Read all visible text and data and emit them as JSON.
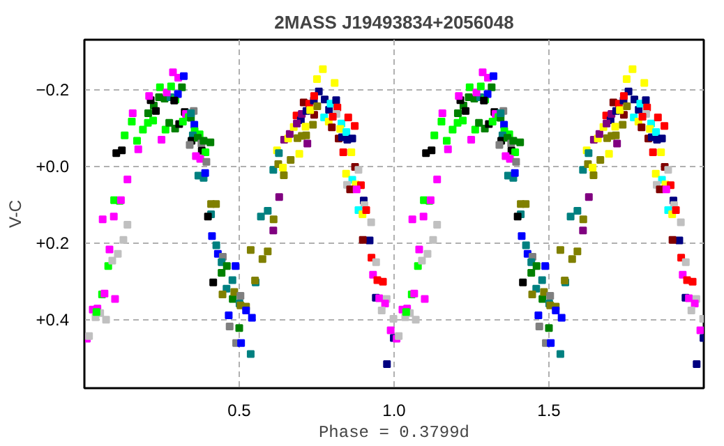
{
  "chart_data": {
    "type": "scatter",
    "title": "2MASS J19493834+2056048",
    "xlabel": "Phase = 0.3799d",
    "ylabel": "V-C",
    "marker": "square",
    "grid": true,
    "xlim": [
      0,
      2
    ],
    "xticks": [
      0.5,
      {
        "value": 1,
        "label": "1.0"
      },
      1.5
    ],
    "ylim": [
      0.58,
      -0.33
    ],
    "yticks": [
      -0.2,
      {
        "value": 0,
        "label": "+0.0"
      },
      {
        "value": 0.2,
        "label": "+0.2"
      },
      {
        "value": 0.4,
        "label": "+0.4"
      }
    ],
    "series": [
      {
        "x": [
          0.008,
          0.015,
          0.027,
          0.042,
          0.051,
          0.036,
          0.07,
          0.039,
          0.057,
          0.065,
          0.099,
          0.077,
          0.081,
          0.09,
          0.108,
          0.126,
          0.139,
          0.059,
          0.095,
          0.096,
          0.114,
          0.118,
          0.139,
          0.103,
          0.121,
          0.174,
          0.17,
          0.13,
          0.189,
          0.153,
          0.156,
          0.205,
          0.222,
          0.262,
          0.249,
          0.206,
          0.224,
          0.231,
          0.214,
          0.209,
          0.241,
          0.259,
          0.244,
          0.278,
          0.294,
          0.266,
          0.28,
          0.315,
          0.302,
          0.29,
          0.286,
          0.303,
          0.321,
          0.274,
          0.293,
          0.306,
          0.318,
          0.324,
          0.328,
          0.337,
          0.344,
          0.353,
          0.344,
          0.355,
          0.356,
          0.372,
          0.35,
          0.346,
          0.34,
          0.366,
          0.378,
          0.385,
          0.407,
          0.379,
          0.391,
          0.36,
          0.374,
          0.394,
          0.368,
          0.385,
          0.39,
          0.409,
          0.425,
          0.409,
          0.399,
          0.412,
          0.426,
          0.431,
          0.447,
          0.443,
          0.46,
          0.488,
          0.443,
          0.416,
          0.478,
          0.459,
          0.446,
          0.479,
          0.484,
          0.504,
          0.501,
          0.504,
          0.522,
          0.522,
          0.466,
          0.5,
          0.469,
          0.49,
          0.506,
          0.537,
          0.541,
          0.537,
          0.592,
          0.575,
          0.553,
          0.551,
          0.57,
          0.592,
          0.611,
          0.61,
          0.629,
          0.61,
          0.626,
          0.644,
          0.641,
          0.666,
          0.622,
          0.628,
          0.694,
          0.645,
          0.658,
          0.663,
          0.676,
          0.688,
          0.702,
          0.716,
          0.72,
          0.738,
          0.685,
          0.699,
          0.686,
          0.702,
          0.714,
          0.708,
          0.726,
          0.717,
          0.742,
          0.729,
          0.741,
          0.752,
          0.757,
          0.742,
          0.751,
          0.77,
          0.808,
          0.776,
          0.79,
          0.795,
          0.813,
          0.817,
          0.814,
          0.774,
          0.789,
          0.799,
          0.802,
          0.83,
          0.826,
          0.852,
          0.821,
          0.832,
          0.846,
          0.849,
          0.865,
          0.873,
          0.836,
          0.862,
          0.874,
          0.885,
          0.845,
          0.865,
          0.876,
          0.848,
          0.858,
          0.893,
          0.879,
          0.902,
          0.904,
          0.885,
          0.898,
          0.91,
          0.921,
          0.899,
          0.926,
          0.927,
          0.942,
          0.932,
          0.946,
          0.964,
          0.941,
          0.952,
          0.976,
          0.971,
          0.96,
          0.998,
          0.989,
          0.999,
          0.977
        ],
        "values": [
          0.451,
          0.444,
          0.375,
          0.372,
          0.384,
          0.395,
          0.401,
          0.381,
          0.335,
          0.333,
          0.347,
          0.261,
          0.218,
          0.247,
          0.229,
          0.193,
          0.153,
          0.139,
          0.132,
          0.089,
          0.091,
          0.089,
          0.035,
          -0.034,
          -0.041,
          -0.044,
          -0.066,
          -0.08,
          -0.095,
          -0.116,
          -0.138,
          -0.113,
          -0.119,
          -0.095,
          -0.069,
          -0.138,
          -0.158,
          -0.144,
          -0.172,
          -0.183,
          -0.18,
          -0.176,
          -0.206,
          -0.18,
          -0.174,
          -0.192,
          -0.208,
          -0.206,
          -0.188,
          -0.171,
          -0.245,
          -0.231,
          -0.235,
          -0.113,
          -0.098,
          -0.11,
          -0.116,
          -0.141,
          -0.136,
          -0.128,
          -0.126,
          -0.144,
          -0.138,
          -0.108,
          -0.091,
          -0.083,
          -0.08,
          -0.066,
          -0.055,
          -0.074,
          -0.059,
          -0.066,
          -0.062,
          -0.04,
          -0.036,
          -0.026,
          -0.019,
          -0.011,
          0.025,
          0.031,
          0.018,
          0.099,
          0.099,
          0.126,
          0.132,
          0.183,
          0.207,
          0.229,
          0.237,
          0.251,
          0.261,
          0.261,
          0.279,
          0.304,
          0.298,
          0.32,
          0.335,
          0.347,
          0.329,
          0.339,
          0.359,
          0.364,
          0.367,
          0.377,
          0.39,
          0.423,
          0.419,
          0.462,
          0.462,
          0.491,
          0.396,
          0.219,
          0.223,
          0.243,
          0.304,
          0.299,
          0.132,
          0.117,
          0.139,
          0.168,
          0.081,
          0.01,
          -0.005,
          0.024,
          0.004,
          -0.016,
          -0.041,
          -0.034,
          -0.032,
          -0.069,
          -0.072,
          -0.084,
          -0.102,
          -0.073,
          -0.079,
          -0.08,
          -0.059,
          -0.108,
          -0.132,
          -0.12,
          -0.111,
          -0.136,
          -0.103,
          -0.166,
          -0.163,
          -0.144,
          -0.134,
          -0.146,
          -0.171,
          -0.156,
          -0.195,
          -0.183,
          -0.227,
          -0.253,
          -0.217,
          -0.174,
          -0.147,
          -0.163,
          -0.172,
          -0.153,
          -0.136,
          -0.127,
          -0.116,
          -0.101,
          -0.129,
          -0.111,
          -0.097,
          -0.127,
          -0.072,
          -0.075,
          -0.089,
          -0.069,
          -0.072,
          -0.105,
          -0.036,
          -0.036,
          0.002,
          0.01,
          0.02,
          0.036,
          0.048,
          0.049,
          0.061,
          0.05,
          0.061,
          0.09,
          0.102,
          0.115,
          0.126,
          0.115,
          0.194,
          0.193,
          0.147,
          0.239,
          0.251,
          0.284,
          0.298,
          0.302,
          0.344,
          0.345,
          0.347,
          0.359,
          0.377,
          0.399,
          0.429,
          0.449,
          0.517
        ],
        "colors": [
          "#ff00ff",
          "#c0c0c0",
          "#ff00ff",
          "#ff00ff",
          "#c0c0c0",
          "#c0c0c0",
          "#c0c0c0",
          "#00ff00",
          "#00ff00",
          "#ff00ff",
          "#ff00ff",
          "#00ff00",
          "#ff00ff",
          "#c0c0c0",
          "#c0c0c0",
          "#c0c0c0",
          "#c0c0c0",
          "#ff00ff",
          "#ff00ff",
          "#00ff00",
          "#00ff00",
          "#ff00ff",
          "#ff00ff",
          "#000000",
          "#000000",
          "#ff00ff",
          "#00ff00",
          "#00ff00",
          "#00ff00",
          "#00ff00",
          "#ff00ff",
          "#00ff00",
          "#00ff00",
          "#00ff00",
          "#ff00ff",
          "#008000",
          "#008000",
          "#000000",
          "#000000",
          "#ff00ff",
          "#008000",
          "#008000",
          "#00ff00",
          "#008080",
          "#00ff00",
          "#ff00ff",
          "#00ff00",
          "#008000",
          "#0000ff",
          "#000000",
          "#ff00ff",
          "#ff00ff",
          "#0000ff",
          "#008000",
          "#008000",
          "#000000",
          "#00ff00",
          "#000000",
          "#ff00ff",
          "#00ff00",
          "#008000",
          "#808080",
          "#008080",
          "#0000ff",
          "#00ff00",
          "#00ff00",
          "#008080",
          "#000000",
          "#808080",
          "#008000",
          "#808080",
          "#008000",
          "#008000",
          "#000000",
          "#00ff00",
          "#ff00ff",
          "#ff00ff",
          "#808080",
          "#008080",
          "#008080",
          "#0000ff",
          "#808000",
          "#808000",
          "#008080",
          "#000000",
          "#0000ff",
          "#008080",
          "#0000ff",
          "#808080",
          "#008080",
          "#008000",
          "#0000ff",
          "#008000",
          "#000000",
          "#008080",
          "#008080",
          "#808000",
          "#008000",
          "#808000",
          "#808080",
          "#008080",
          "#808000",
          "#808000",
          "#0000ff",
          "#0000ff",
          "#008000",
          "#808080",
          "#808080",
          "#0000ff",
          "#008080",
          "#0000ff",
          "#808000",
          "#808000",
          "#808000",
          "#008080",
          "#808000",
          "#008080",
          "#008080",
          "#808000",
          "#800080",
          "#800080",
          "#008080",
          "#808000",
          "#808000",
          "#ffff00",
          "#808000",
          "#ffff00",
          "#008080",
          "#ffff00",
          "#800080",
          "#ffff00",
          "#800080",
          "#ffff00",
          "#808000",
          "#808000",
          "#808000",
          "#800080",
          "#808000",
          "#ff0000",
          "#000080",
          "#800080",
          "#800080",
          "#ffff00",
          "#800000",
          "#ff0000",
          "#000080",
          "#800000",
          "#ffff00",
          "#000080",
          "#808000",
          "#000080",
          "#ff0000",
          "#ffff00",
          "#ffff00",
          "#ffff00",
          "#000080",
          "#000080",
          "#00ffff",
          "#000080",
          "#ff0000",
          "#c0c0c0",
          "#00ffff",
          "#ffff00",
          "#800000",
          "#ff0000",
          "#00ffff",
          "#ffff00",
          "#ff0000",
          "#800000",
          "#000080",
          "#00ffff",
          "#000080",
          "#000080",
          "#ff0000",
          "#ff0000",
          "#ffff00",
          "#800000",
          "#c0c0c0",
          "#ffff00",
          "#00ffff",
          "#ffff00",
          "#c0c0c0",
          "#800000",
          "#ff0000",
          "#ff00ff",
          "#000080",
          "#c0c0c0",
          "#00ffff",
          "#ffff00",
          "#ff0000",
          "#000080",
          "#800000",
          "#c0c0c0",
          "#ff0000",
          "#c0c0c0",
          "#ff00ff",
          "#ff0000",
          "#ff0000",
          "#000080",
          "#ff00ff",
          "#c0c0c0",
          "#ff00ff",
          "#c0c0c0",
          "#c0c0c0",
          "#ff00ff",
          "#000080",
          "#000080"
        ]
      },
      {
        "x": [
          1.008,
          1.015,
          1.027,
          1.042,
          1.051,
          1.036,
          1.07,
          1.039,
          1.057,
          1.065,
          1.099,
          1.077,
          1.081,
          1.09,
          1.108,
          1.126,
          1.139,
          1.059,
          1.095,
          1.096,
          1.114,
          1.118,
          1.139,
          1.103,
          1.121,
          1.174,
          1.17,
          1.13,
          1.189,
          1.153,
          1.156,
          1.205,
          1.222,
          1.262,
          1.249,
          1.206,
          1.224,
          1.231,
          1.214,
          1.209,
          1.241,
          1.259,
          1.244,
          1.278,
          1.294,
          1.266,
          1.28,
          1.315,
          1.302,
          1.29,
          1.286,
          1.303,
          1.321,
          1.274,
          1.293,
          1.306,
          1.318,
          1.324,
          1.328,
          1.337,
          1.344,
          1.353,
          1.344,
          1.355,
          1.356,
          1.372,
          1.35,
          1.346,
          1.34,
          1.366,
          1.378,
          1.385,
          1.407,
          1.379,
          1.391,
          1.36,
          1.374,
          1.394,
          1.368,
          1.385,
          1.39,
          1.409,
          1.425,
          1.409,
          1.399,
          1.412,
          1.426,
          1.431,
          1.447,
          1.443,
          1.46,
          1.488,
          1.443,
          1.416,
          1.478,
          1.459,
          1.446,
          1.479,
          1.484,
          1.504,
          1.501,
          1.504,
          1.522,
          1.522,
          1.466,
          1.5,
          1.469,
          1.49,
          1.506,
          1.537,
          1.541,
          1.537,
          1.592,
          1.575,
          1.553,
          1.551,
          1.57,
          1.592,
          1.611,
          1.61,
          1.629,
          1.61,
          1.626,
          1.644,
          1.641,
          1.666,
          1.622,
          1.628,
          1.694,
          1.645,
          1.658,
          1.663,
          1.676,
          1.688,
          1.702,
          1.716,
          1.72,
          1.738,
          1.685,
          1.699,
          1.686,
          1.702,
          1.714,
          1.708,
          1.726,
          1.717,
          1.742,
          1.729,
          1.741,
          1.752,
          1.757,
          1.742,
          1.751,
          1.77,
          1.808,
          1.776,
          1.79,
          1.795,
          1.813,
          1.817,
          1.814,
          1.774,
          1.789,
          1.799,
          1.802,
          1.83,
          1.826,
          1.852,
          1.821,
          1.832,
          1.846,
          1.849,
          1.865,
          1.873,
          1.836,
          1.862,
          1.874,
          1.885,
          1.845,
          1.865,
          1.876,
          1.848,
          1.858,
          1.893,
          1.879,
          1.902,
          1.904,
          1.885,
          1.898,
          1.91,
          1.921,
          1.899,
          1.926,
          1.927,
          1.942,
          1.932,
          1.946,
          1.964,
          1.941,
          1.952,
          1.976,
          1.971,
          1.96,
          1.998,
          1.989,
          1.999,
          1.977
        ],
        "values": [
          0.451,
          0.444,
          0.375,
          0.372,
          0.384,
          0.395,
          0.401,
          0.381,
          0.335,
          0.333,
          0.347,
          0.261,
          0.218,
          0.247,
          0.229,
          0.193,
          0.153,
          0.139,
          0.132,
          0.089,
          0.091,
          0.089,
          0.035,
          -0.034,
          -0.041,
          -0.044,
          -0.066,
          -0.08,
          -0.095,
          -0.116,
          -0.138,
          -0.113,
          -0.119,
          -0.095,
          -0.069,
          -0.138,
          -0.158,
          -0.144,
          -0.172,
          -0.183,
          -0.18,
          -0.176,
          -0.206,
          -0.18,
          -0.174,
          -0.192,
          -0.208,
          -0.206,
          -0.188,
          -0.171,
          -0.245,
          -0.231,
          -0.235,
          -0.113,
          -0.098,
          -0.11,
          -0.116,
          -0.141,
          -0.136,
          -0.128,
          -0.126,
          -0.144,
          -0.138,
          -0.108,
          -0.091,
          -0.083,
          -0.08,
          -0.066,
          -0.055,
          -0.074,
          -0.059,
          -0.066,
          -0.062,
          -0.04,
          -0.036,
          -0.026,
          -0.019,
          -0.011,
          0.025,
          0.031,
          0.018,
          0.099,
          0.099,
          0.126,
          0.132,
          0.183,
          0.207,
          0.229,
          0.237,
          0.251,
          0.261,
          0.261,
          0.279,
          0.304,
          0.298,
          0.32,
          0.335,
          0.347,
          0.329,
          0.339,
          0.359,
          0.364,
          0.367,
          0.377,
          0.39,
          0.423,
          0.419,
          0.462,
          0.462,
          0.491,
          0.396,
          0.219,
          0.223,
          0.243,
          0.304,
          0.299,
          0.132,
          0.117,
          0.139,
          0.168,
          0.081,
          0.01,
          -0.005,
          0.024,
          0.004,
          -0.016,
          -0.041,
          -0.034,
          -0.032,
          -0.069,
          -0.072,
          -0.084,
          -0.102,
          -0.073,
          -0.079,
          -0.08,
          -0.059,
          -0.108,
          -0.132,
          -0.12,
          -0.111,
          -0.136,
          -0.103,
          -0.166,
          -0.163,
          -0.144,
          -0.134,
          -0.146,
          -0.171,
          -0.156,
          -0.195,
          -0.183,
          -0.227,
          -0.253,
          -0.217,
          -0.174,
          -0.147,
          -0.163,
          -0.172,
          -0.153,
          -0.136,
          -0.127,
          -0.116,
          -0.101,
          -0.129,
          -0.111,
          -0.097,
          -0.127,
          -0.072,
          -0.075,
          -0.089,
          -0.069,
          -0.072,
          -0.105,
          -0.036,
          -0.036,
          0.002,
          0.01,
          0.02,
          0.036,
          0.048,
          0.049,
          0.061,
          0.05,
          0.061,
          0.09,
          0.102,
          0.115,
          0.126,
          0.115,
          0.194,
          0.193,
          0.147,
          0.239,
          0.251,
          0.284,
          0.298,
          0.302,
          0.344,
          0.345,
          0.347,
          0.359,
          0.377,
          0.399,
          0.429,
          0.449,
          0.517
        ],
        "colors": [
          "#ff00ff",
          "#c0c0c0",
          "#ff00ff",
          "#ff00ff",
          "#c0c0c0",
          "#c0c0c0",
          "#c0c0c0",
          "#00ff00",
          "#00ff00",
          "#ff00ff",
          "#ff00ff",
          "#00ff00",
          "#ff00ff",
          "#c0c0c0",
          "#c0c0c0",
          "#c0c0c0",
          "#c0c0c0",
          "#ff00ff",
          "#ff00ff",
          "#00ff00",
          "#00ff00",
          "#ff00ff",
          "#ff00ff",
          "#000000",
          "#000000",
          "#ff00ff",
          "#00ff00",
          "#00ff00",
          "#00ff00",
          "#00ff00",
          "#ff00ff",
          "#00ff00",
          "#00ff00",
          "#00ff00",
          "#ff00ff",
          "#008000",
          "#008000",
          "#000000",
          "#000000",
          "#ff00ff",
          "#008000",
          "#008000",
          "#00ff00",
          "#008080",
          "#00ff00",
          "#ff00ff",
          "#00ff00",
          "#008000",
          "#0000ff",
          "#000000",
          "#ff00ff",
          "#ff00ff",
          "#0000ff",
          "#008000",
          "#008000",
          "#000000",
          "#00ff00",
          "#000000",
          "#ff00ff",
          "#00ff00",
          "#008000",
          "#808080",
          "#008080",
          "#0000ff",
          "#00ff00",
          "#00ff00",
          "#008080",
          "#000000",
          "#808080",
          "#008000",
          "#808080",
          "#008000",
          "#008000",
          "#000000",
          "#00ff00",
          "#ff00ff",
          "#ff00ff",
          "#808080",
          "#008080",
          "#008080",
          "#0000ff",
          "#808000",
          "#808000",
          "#008080",
          "#000000",
          "#0000ff",
          "#008080",
          "#0000ff",
          "#808080",
          "#008080",
          "#008000",
          "#0000ff",
          "#008000",
          "#000000",
          "#008080",
          "#008080",
          "#808000",
          "#008000",
          "#808000",
          "#808080",
          "#008080",
          "#808000",
          "#808000",
          "#0000ff",
          "#0000ff",
          "#008000",
          "#808080",
          "#808080",
          "#0000ff",
          "#008080",
          "#0000ff",
          "#808000",
          "#808000",
          "#808000",
          "#008080",
          "#808000",
          "#008080",
          "#008080",
          "#808000",
          "#800080",
          "#800080",
          "#008080",
          "#808000",
          "#808000",
          "#ffff00",
          "#808000",
          "#ffff00",
          "#008080",
          "#ffff00",
          "#800080",
          "#ffff00",
          "#800080",
          "#ffff00",
          "#808000",
          "#808000",
          "#808000",
          "#800080",
          "#808000",
          "#ff0000",
          "#000080",
          "#800080",
          "#800080",
          "#ffff00",
          "#800000",
          "#ff0000",
          "#000080",
          "#800000",
          "#ffff00",
          "#000080",
          "#808000",
          "#000080",
          "#ff0000",
          "#ffff00",
          "#ffff00",
          "#ffff00",
          "#000080",
          "#000080",
          "#00ffff",
          "#000080",
          "#ff0000",
          "#c0c0c0",
          "#00ffff",
          "#ffff00",
          "#800000",
          "#ff0000",
          "#00ffff",
          "#ffff00",
          "#ff0000",
          "#800000",
          "#000080",
          "#00ffff",
          "#000080",
          "#000080",
          "#ff0000",
          "#ff0000",
          "#ffff00",
          "#800000",
          "#c0c0c0",
          "#ffff00",
          "#00ffff",
          "#ffff00",
          "#c0c0c0",
          "#800000",
          "#ff0000",
          "#ff00ff",
          "#000080",
          "#c0c0c0",
          "#00ffff",
          "#ffff00",
          "#ff0000",
          "#000080",
          "#800000",
          "#c0c0c0",
          "#ff0000",
          "#c0c0c0",
          "#ff00ff",
          "#ff0000",
          "#ff0000",
          "#000080",
          "#ff00ff",
          "#c0c0c0",
          "#ff00ff",
          "#c0c0c0",
          "#c0c0c0",
          "#ff00ff",
          "#000080",
          "#000080"
        ]
      }
    ]
  }
}
